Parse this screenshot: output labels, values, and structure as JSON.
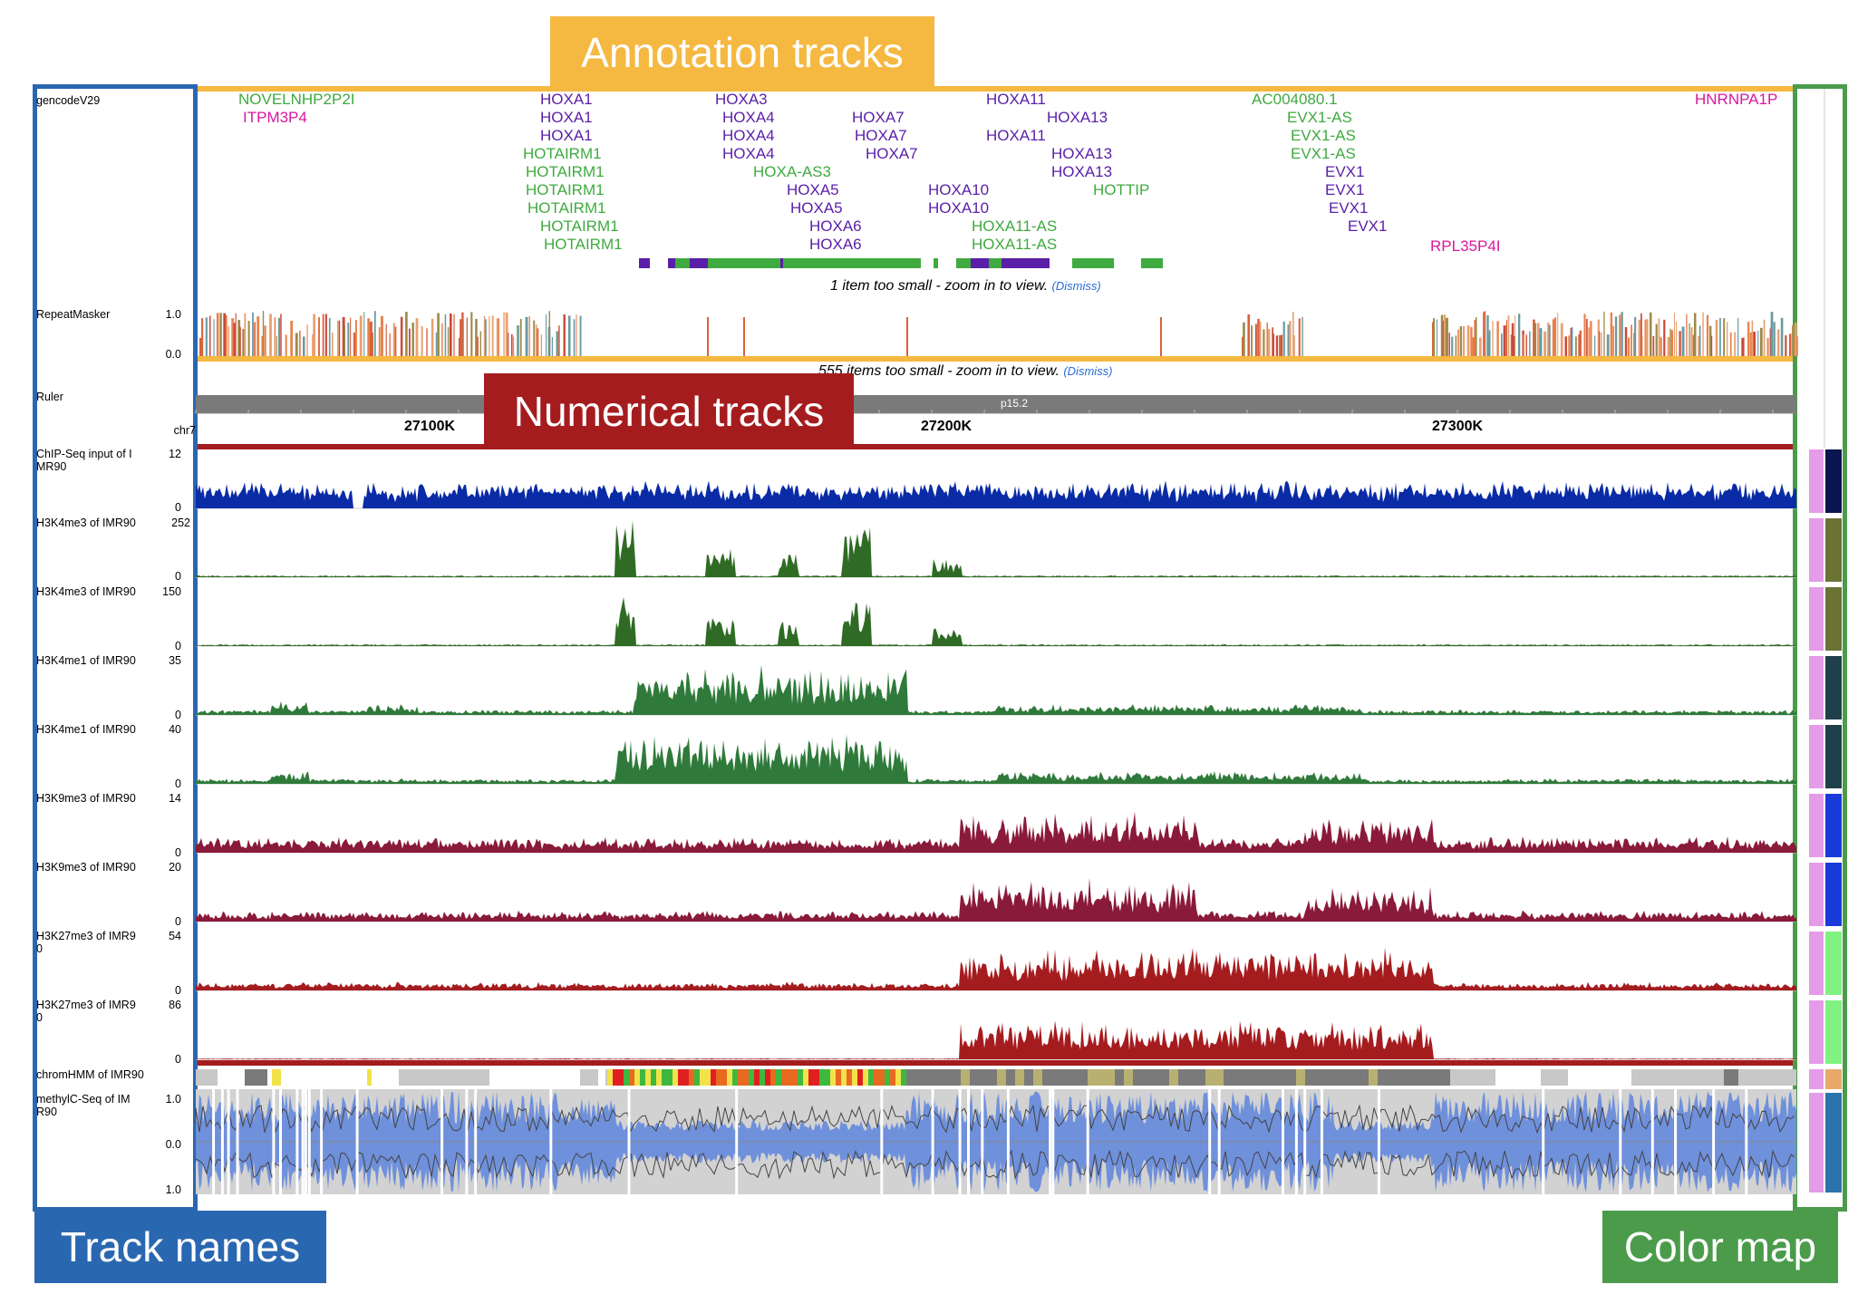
{
  "callouts": {
    "annotation": "Annotation tracks",
    "numerical": "Numerical tracks",
    "track_names": "Track names",
    "color_map": "Color map"
  },
  "colors": {
    "annotation": "#f5b841",
    "numerical": "#a51c1f",
    "track_names": "#2a67b1",
    "color_map": "#4b9b4b"
  },
  "tracks": [
    {
      "name": "gencodeV29",
      "ticks": []
    },
    {
      "name": "RepeatMasker",
      "ticks": [
        "1.0",
        "0.0"
      ]
    },
    {
      "name": "Ruler",
      "ticks": []
    },
    {
      "name": "chr7",
      "ticks": []
    },
    {
      "name": "ChIP-Seq input of I\nMR90",
      "ticks": [
        "12",
        "0"
      ]
    },
    {
      "name": "H3K4me3 of IMR90",
      "ticks": [
        "252",
        "0"
      ]
    },
    {
      "name": "H3K4me3 of IMR90",
      "ticks": [
        "150",
        "0"
      ]
    },
    {
      "name": "H3K4me1 of IMR90",
      "ticks": [
        "35",
        "0"
      ]
    },
    {
      "name": "H3K4me1 of IMR90",
      "ticks": [
        "40",
        "0"
      ]
    },
    {
      "name": "H3K9me3 of IMR90",
      "ticks": [
        "14",
        "0"
      ]
    },
    {
      "name": "H3K9me3 of IMR90",
      "ticks": [
        "20",
        "0"
      ]
    },
    {
      "name": "H3K27me3 of IMR9\n0",
      "ticks": [
        "54",
        "0"
      ]
    },
    {
      "name": "H3K27me3 of IMR9\n0",
      "ticks": [
        "86",
        "0"
      ]
    },
    {
      "name": "chromHMM of IMR90",
      "ticks": []
    },
    {
      "name": "methylC-Seq of IM\nR90",
      "ticks": [
        "1.0",
        "0.0",
        "1.0"
      ]
    }
  ],
  "genes": [
    {
      "text": "NOVELNHP2P2I",
      "color": "green"
    },
    {
      "text": "ITPM3P4",
      "color": "magenta"
    },
    {
      "text": "HOXA1",
      "color": "purple"
    },
    {
      "text": "HOXA1",
      "color": "purple"
    },
    {
      "text": "HOXA1",
      "color": "purple"
    },
    {
      "text": "HOTAIRM1",
      "color": "green"
    },
    {
      "text": "HOTAIRM1",
      "color": "green"
    },
    {
      "text": "HOTAIRM1",
      "color": "green"
    },
    {
      "text": "HOTAIRM1",
      "color": "green"
    },
    {
      "text": "HOTAIRM1",
      "color": "green"
    },
    {
      "text": "HOTAIRM1",
      "color": "green"
    },
    {
      "text": "HOXA3",
      "color": "purple"
    },
    {
      "text": "HOXA4",
      "color": "purple"
    },
    {
      "text": "HOXA4",
      "color": "purple"
    },
    {
      "text": "HOXA4",
      "color": "purple"
    },
    {
      "text": "HOXA-AS3",
      "color": "green"
    },
    {
      "text": "HOXA5",
      "color": "purple"
    },
    {
      "text": "HOXA5",
      "color": "purple"
    },
    {
      "text": "HOXA6",
      "color": "purple"
    },
    {
      "text": "HOXA6",
      "color": "purple"
    },
    {
      "text": "HOXA7",
      "color": "purple"
    },
    {
      "text": "HOXA7",
      "color": "purple"
    },
    {
      "text": "HOXA7",
      "color": "purple"
    },
    {
      "text": "HOXA10",
      "color": "purple"
    },
    {
      "text": "HOXA10",
      "color": "purple"
    },
    {
      "text": "HOXA11-AS",
      "color": "green"
    },
    {
      "text": "HOXA11-AS",
      "color": "green"
    },
    {
      "text": "HOXA11",
      "color": "purple"
    },
    {
      "text": "HOXA11",
      "color": "purple"
    },
    {
      "text": "HOXA13",
      "color": "purple"
    },
    {
      "text": "HOXA13",
      "color": "purple"
    },
    {
      "text": "HOXA13",
      "color": "purple"
    },
    {
      "text": "HOTTIP",
      "color": "green"
    },
    {
      "text": "AC004080.1",
      "color": "green"
    },
    {
      "text": "EVX1-AS",
      "color": "green"
    },
    {
      "text": "EVX1-AS",
      "color": "green"
    },
    {
      "text": "EVX1-AS",
      "color": "green"
    },
    {
      "text": "EVX1",
      "color": "purple"
    },
    {
      "text": "EVX1",
      "color": "purple"
    },
    {
      "text": "EVX1",
      "color": "purple"
    },
    {
      "text": "EVX1",
      "color": "purple"
    },
    {
      "text": "RPL35P4I",
      "color": "magenta"
    },
    {
      "text": "HNRNPA1P",
      "color": "magenta"
    }
  ],
  "notices": {
    "gencode": "1 item too small - zoom in to view.",
    "repeat": "555 items too small - zoom in to view.",
    "dismiss": "(Dismiss)"
  },
  "ruler": {
    "band": "p15.2",
    "chrom": "chr7",
    "labels": [
      "27100K",
      "27200K",
      "27300K"
    ]
  },
  "color_map_swatches": [
    "#0a1450",
    "#6b7236",
    "#6b7236",
    "#1f3f4a",
    "#1f3f4a",
    "#1a3ad9",
    "#1a3ad9",
    "#7ff27f",
    "#7ff27f",
    "#e8a86a",
    "#2b73a8"
  ]
}
